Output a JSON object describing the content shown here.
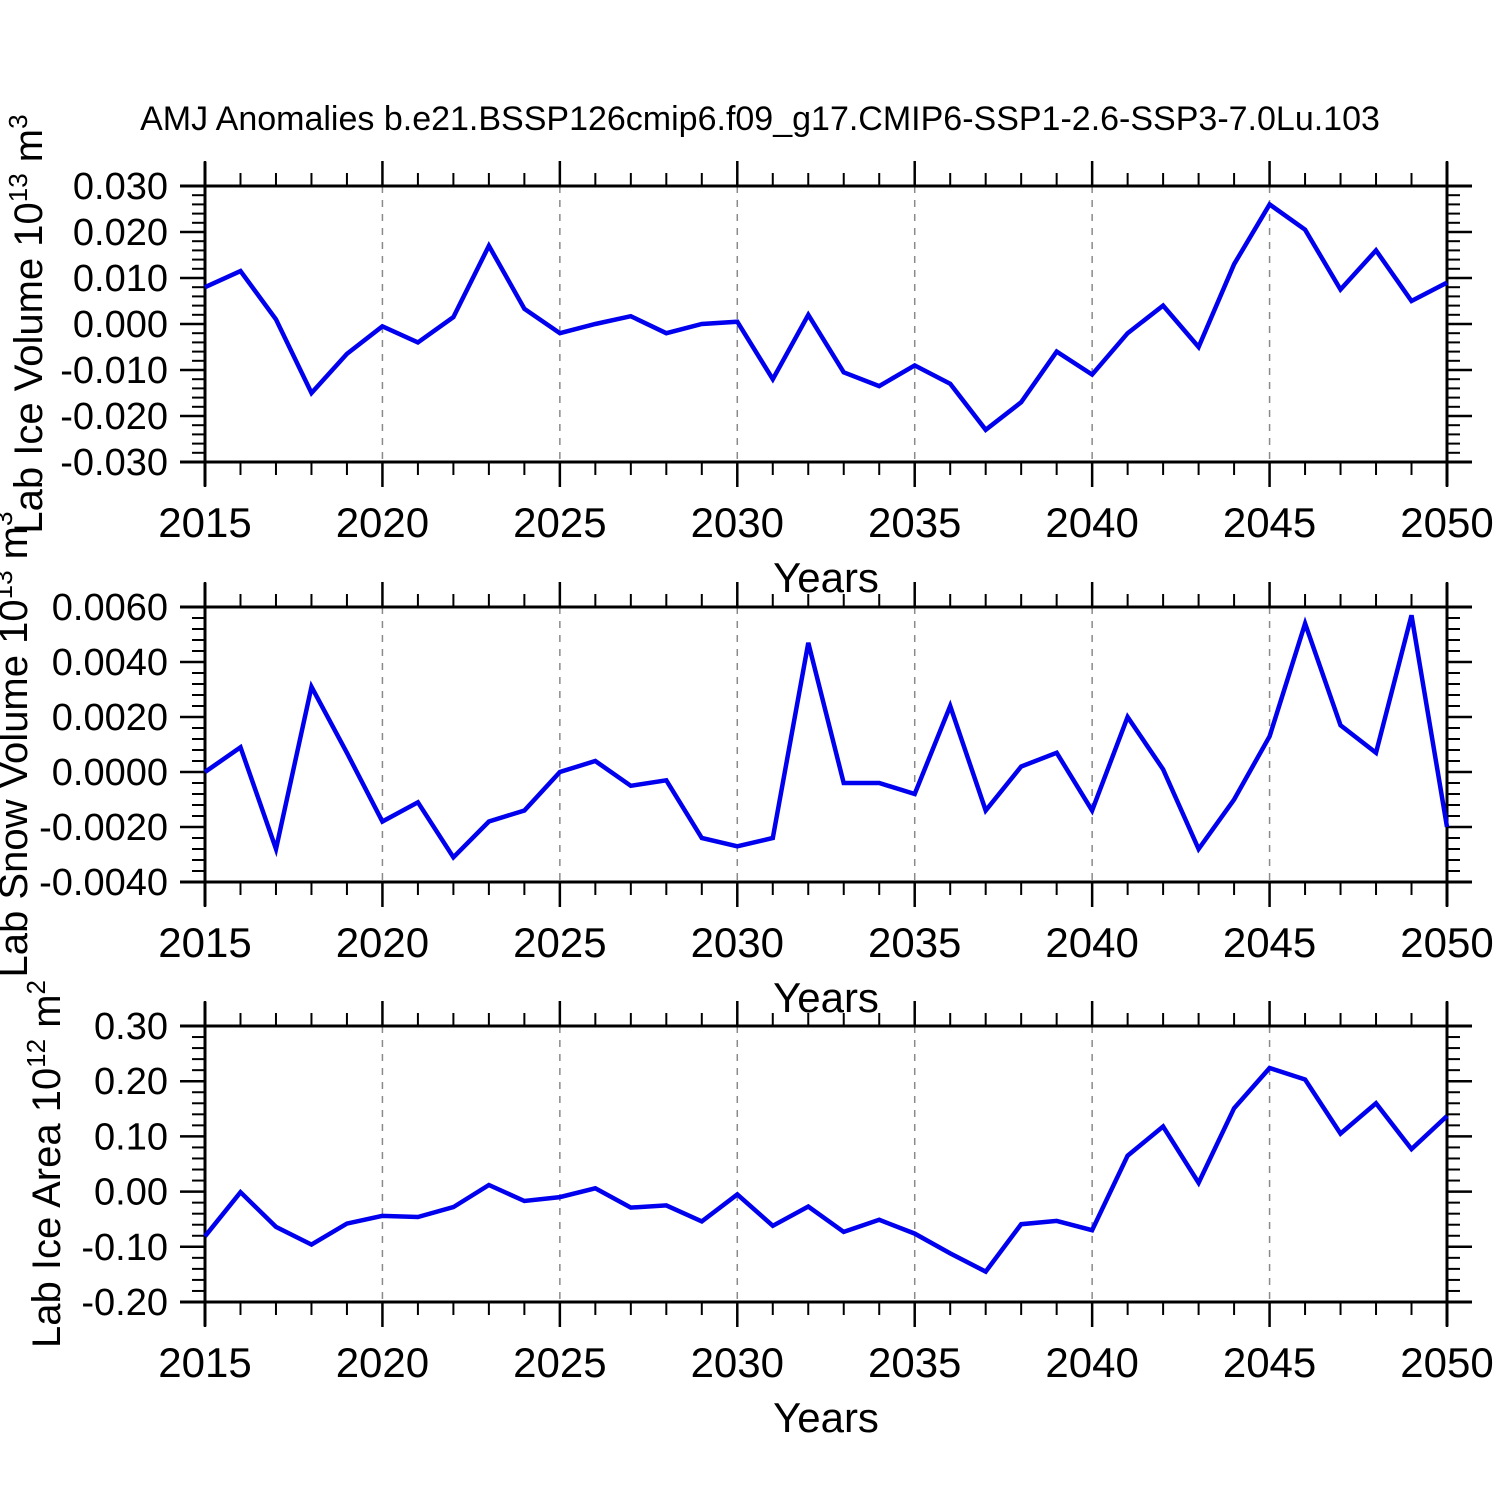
{
  "title": "AMJ Anomalies b.e21.BSSP126cmip6.f09_g17.CMIP6-SSP1-2.6-SSP3-7.0Lu.103",
  "colors": {
    "line": "#0000ee",
    "grid": "#8a8a8a",
    "axis": "#000000",
    "text": "#000000",
    "background": "#ffffff"
  },
  "x_axis": {
    "label": "Years",
    "major_tick_labels": [
      "2015",
      "2020",
      "2025",
      "2030",
      "2035",
      "2040",
      "2045",
      "2050"
    ],
    "major_tick_values": [
      2015,
      2020,
      2025,
      2030,
      2035,
      2040,
      2045,
      2050
    ],
    "grid_years": [
      2020,
      2025,
      2030,
      2035,
      2040,
      2045
    ],
    "xlim": [
      2015,
      2050
    ],
    "minor_step": 1
  },
  "chart_data": [
    {
      "type": "line",
      "name": "lab-ice-volume",
      "ylabel": {
        "prefix": "Lab Ice Volume 10",
        "sup1": "13",
        "mid": " m",
        "sup2": "3"
      },
      "xlabel": "Years",
      "ylim": [
        -0.03,
        0.03
      ],
      "y_minor_step": 0.002,
      "grid": "dashed-vertical",
      "legend": "none",
      "y_ticks": {
        "labels": [
          "0.030",
          "0.020",
          "0.010",
          "0.000",
          "-0.010",
          "-0.020",
          "-0.030"
        ],
        "values": [
          0.03,
          0.02,
          0.01,
          0.0,
          -0.01,
          -0.02,
          -0.03
        ]
      },
      "x": [
        2015,
        2016,
        2017,
        2018,
        2019,
        2020,
        2021,
        2022,
        2023,
        2024,
        2025,
        2026,
        2027,
        2028,
        2029,
        2030,
        2031,
        2032,
        2033,
        2034,
        2035,
        2036,
        2037,
        2038,
        2039,
        2040,
        2041,
        2042,
        2043,
        2044,
        2045,
        2046,
        2047,
        2048,
        2049,
        2050
      ],
      "values": [
        0.008,
        0.0115,
        0.001,
        -0.015,
        -0.0065,
        -0.0005,
        -0.004,
        0.0015,
        0.017,
        0.0033,
        -0.002,
        0.0,
        0.0017,
        -0.002,
        0.0,
        0.0005,
        -0.012,
        0.002,
        -0.0105,
        -0.0135,
        -0.009,
        -0.013,
        -0.023,
        -0.017,
        -0.006,
        -0.011,
        -0.002,
        0.004,
        -0.005,
        0.013,
        0.026,
        0.0205,
        0.0075,
        0.016,
        0.005,
        0.009
      ]
    },
    {
      "type": "line",
      "name": "lab-snow-volume",
      "ylabel": {
        "prefix": "Lab Snow Volume 10",
        "sup1": "13",
        "mid": " m",
        "sup2": "3"
      },
      "xlabel": "Years",
      "ylim": [
        -0.004,
        0.006
      ],
      "y_minor_step": 0.0004,
      "grid": "dashed-vertical",
      "legend": "none",
      "y_ticks": {
        "labels": [
          "0.0060",
          "0.0040",
          "0.0020",
          "0.0000",
          "-0.0020",
          "-0.0040"
        ],
        "values": [
          0.006,
          0.004,
          0.002,
          0.0,
          -0.002,
          -0.004
        ]
      },
      "x": [
        2015,
        2016,
        2017,
        2018,
        2019,
        2020,
        2021,
        2022,
        2023,
        2024,
        2025,
        2026,
        2027,
        2028,
        2029,
        2030,
        2031,
        2032,
        2033,
        2034,
        2035,
        2036,
        2037,
        2038,
        2039,
        2040,
        2041,
        2042,
        2043,
        2044,
        2045,
        2046,
        2047,
        2048,
        2049,
        2050
      ],
      "values": [
        0.0,
        0.0009,
        -0.0028,
        0.0031,
        0.0007,
        -0.0018,
        -0.0011,
        -0.0031,
        -0.0018,
        -0.0014,
        0.0,
        0.0004,
        -0.0005,
        -0.0003,
        -0.0024,
        -0.0027,
        -0.0024,
        0.0047,
        -0.0004,
        -0.0004,
        -0.0008,
        0.0024,
        -0.0014,
        0.0002,
        0.0007,
        -0.0014,
        0.002,
        0.0001,
        -0.0028,
        -0.001,
        0.0013,
        0.0054,
        0.0017,
        0.0007,
        0.0057,
        -0.002
      ]
    },
    {
      "type": "line",
      "name": "lab-ice-area",
      "ylabel": {
        "prefix": "Lab Ice Area 10",
        "sup1": "12",
        "mid": " m",
        "sup2": "2"
      },
      "xlabel": "Years",
      "ylim": [
        -0.2,
        0.3
      ],
      "y_minor_step": 0.02,
      "grid": "dashed-vertical",
      "legend": "none",
      "y_ticks": {
        "labels": [
          "0.30",
          "0.20",
          "0.10",
          "0.00",
          "-0.10",
          "-0.20"
        ],
        "values": [
          0.3,
          0.2,
          0.1,
          0.0,
          -0.1,
          -0.2
        ]
      },
      "x": [
        2015,
        2016,
        2017,
        2018,
        2019,
        2020,
        2021,
        2022,
        2023,
        2024,
        2025,
        2026,
        2027,
        2028,
        2029,
        2030,
        2031,
        2032,
        2033,
        2034,
        2035,
        2036,
        2037,
        2038,
        2039,
        2040,
        2041,
        2042,
        2043,
        2044,
        2045,
        2046,
        2047,
        2048,
        2049,
        2050
      ],
      "values": [
        -0.081,
        -0.001,
        -0.064,
        -0.096,
        -0.058,
        -0.044,
        -0.046,
        -0.028,
        0.012,
        -0.017,
        -0.01,
        0.006,
        -0.029,
        -0.025,
        -0.054,
        -0.005,
        -0.062,
        -0.027,
        -0.073,
        -0.051,
        -0.076,
        -0.112,
        -0.145,
        -0.059,
        -0.053,
        -0.07,
        0.065,
        0.118,
        0.016,
        0.151,
        0.224,
        0.203,
        0.105,
        0.16,
        0.077,
        0.137
      ]
    }
  ]
}
